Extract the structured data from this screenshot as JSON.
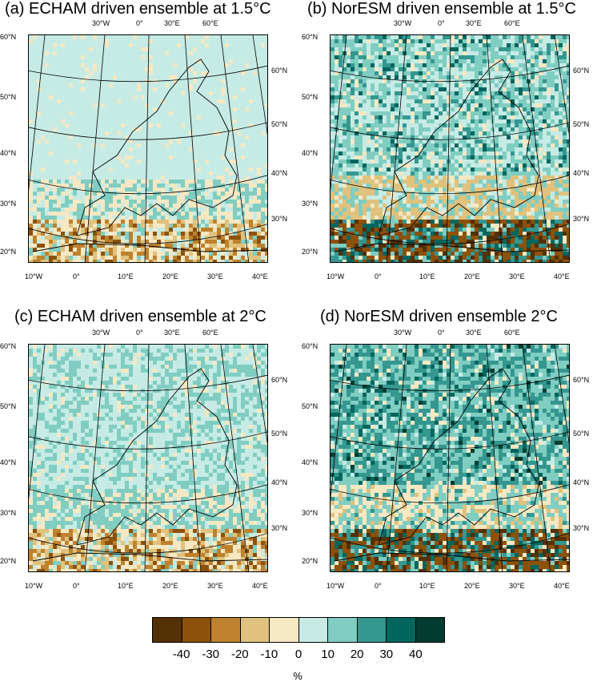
{
  "panels": [
    {
      "title": "(a) ECHAM driven ensemble at 1.5°C",
      "regime": "mild",
      "seed": 11
    },
    {
      "title": "(b) NorESM driven ensemble at 1.5°C",
      "regime": "strong",
      "seed": 23
    },
    {
      "title": "(c) ECHAM driven ensemble at 2°C",
      "regime": "mild2",
      "seed": 37
    },
    {
      "title": "(d) NorESM driven ensemble 2°C",
      "regime": "strong2",
      "seed": 51
    }
  ],
  "axes": {
    "left_lat": [
      "60°N",
      "50°N",
      "40°N",
      "30°N",
      "20°N"
    ],
    "right_lat": [
      "60°N",
      "50°N",
      "40°N",
      "30°N"
    ],
    "top_lon": [
      "30°W",
      "0°",
      "30°E",
      "60°E"
    ],
    "bottom_lon": [
      "10°W",
      "0°",
      "10°E",
      "20°E",
      "30°E",
      "40°E"
    ]
  },
  "colorbar": {
    "colors": [
      "#543005",
      "#8c510a",
      "#bf812d",
      "#dfc27d",
      "#f6e8c3",
      "#c7eae5",
      "#80cdc1",
      "#35978f",
      "#01665e",
      "#003c30"
    ],
    "labels": [
      "-40",
      "-30",
      "-20",
      "-10",
      "0",
      "10",
      "20",
      "30",
      "40"
    ],
    "unit": "%"
  }
}
